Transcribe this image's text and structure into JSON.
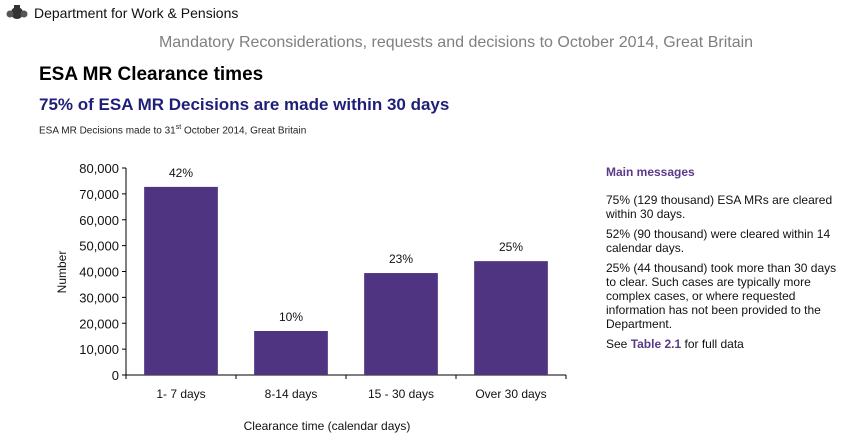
{
  "header": {
    "org_name": "Department for Work & Pensions",
    "document_title": "Mandatory Reconsiderations, requests and decisions to October 2014, Great Britain"
  },
  "section": {
    "title": "ESA MR Clearance times",
    "headline": "75% of ESA MR Decisions are made within 30 days",
    "subtitle_pre": "ESA MR Decisions made to 31",
    "subtitle_sup": "st",
    "subtitle_post": " October 2014, Great Britain"
  },
  "chart_data": {
    "type": "bar",
    "title": "ESA MR Decisions made to 31st October 2014, Great Britain",
    "xlabel": "Clearance time (calendar days)",
    "ylabel": "Number",
    "categories": [
      "1- 7 days",
      "8-14 days",
      "15 - 30 days",
      "Over 30 days"
    ],
    "values": [
      72700,
      17000,
      39400,
      44000
    ],
    "data_labels": [
      "42%",
      "10%",
      "23%",
      "25%"
    ],
    "ylim": [
      0,
      80000
    ],
    "yticks": [
      0,
      10000,
      20000,
      30000,
      40000,
      50000,
      60000,
      70000,
      80000
    ],
    "ytick_labels": [
      "0",
      "10,000",
      "20,000",
      "30,000",
      "40,000",
      "50,000",
      "60,000",
      "70,000",
      "80,000"
    ],
    "grid": false,
    "bar_color": "#4f3481"
  },
  "sidebar": {
    "heading": "Main messages",
    "messages": [
      "75% (129 thousand) ESA MRs are cleared within 30 days.",
      "52% (90 thousand) were cleared within 14 calendar days.",
      "25% (44 thousand) took more than 30 days to clear.  Such cases are typically more complex cases, or where requested information has not been provided to the Department."
    ],
    "see_pre": "See ",
    "see_link": "Table 2.1",
    "see_post": " for full data"
  }
}
